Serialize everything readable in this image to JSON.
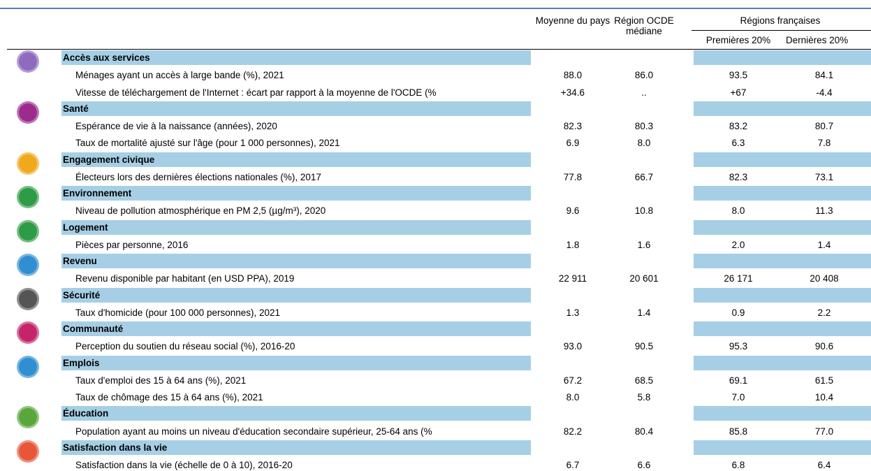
{
  "header": {
    "columns": [
      "Moyenne du pays",
      "Région OCDE médiane"
    ],
    "group": "Régions françaises",
    "subcolumns": [
      "Premières 20%",
      "Dernières 20%"
    ]
  },
  "sections": [
    {
      "title": "Accès aux services",
      "rows": [
        {
          "label": "Ménages ayant un accès à large bande (%), 2021",
          "values": [
            "88.0",
            "86.0",
            "93.5",
            "84.1"
          ]
        },
        {
          "label": "Vitesse de téléchargement de l'Internet : écart par rapport à la moyenne de l'OCDE (%",
          "values": [
            "+34.6",
            "..",
            "+67",
            "-4.4"
          ]
        }
      ]
    },
    {
      "title": "Santé",
      "rows": [
        {
          "label": "Espérance de vie à la naissance (années), 2020",
          "values": [
            "82.3",
            "80.3",
            "83.2",
            "80.7"
          ]
        },
        {
          "label": "Taux de mortalité ajusté sur l'âge (pour 1 000 personnes), 2021",
          "values": [
            "6.9",
            "8.0",
            "6.3",
            "7.8"
          ]
        }
      ]
    },
    {
      "title": "Engagement civique",
      "rows": [
        {
          "label": "Électeurs lors des dernières élections nationales (%), 2017",
          "values": [
            "77.8",
            "66.7",
            "82.3",
            "73.1"
          ]
        }
      ]
    },
    {
      "title": "Environnement",
      "rows": [
        {
          "label": "Niveau de pollution atmosphérique en PM 2,5 (µg/m³), 2020",
          "values": [
            "9.6",
            "10.8",
            "8.0",
            "11.3"
          ]
        }
      ]
    },
    {
      "title": "Logement",
      "rows": [
        {
          "label": "Pièces par personne, 2016",
          "values": [
            "1.8",
            "1.6",
            "2.0",
            "1.4"
          ]
        }
      ]
    },
    {
      "title": "Revenu",
      "rows": [
        {
          "label": "Revenu disponible par habitant (en USD PPA), 2019",
          "values": [
            "22 911",
            "20 601",
            "26 171",
            "20 408"
          ]
        }
      ]
    },
    {
      "title": "Sécurité",
      "rows": [
        {
          "label": "Taux d'homicide (pour 100 000 personnes), 2021",
          "values": [
            "1.3",
            "1.4",
            "0.9",
            "2.2"
          ]
        }
      ]
    },
    {
      "title": "Communauté",
      "rows": [
        {
          "label": "Perception du soutien du réseau social (%), 2016-20",
          "values": [
            "93.0",
            "90.5",
            "95.3",
            "90.6"
          ]
        }
      ]
    },
    {
      "title": "Emplois",
      "rows": [
        {
          "label": "Taux d'emploi des 15 à 64 ans (%), 2021",
          "values": [
            "67.2",
            "68.5",
            "69.1",
            "61.5"
          ]
        },
        {
          "label": "Taux de chômage des 15 à 64 ans (%), 2021",
          "values": [
            "8.0",
            "5.8",
            "7.0",
            "10.4"
          ]
        }
      ]
    },
    {
      "title": "Éducation",
      "rows": [
        {
          "label": "Population ayant au moins un niveau d'éducation secondaire supérieur, 25-64 ans (%",
          "values": [
            "82.2",
            "80.4",
            "85.8",
            "77.0"
          ]
        }
      ]
    },
    {
      "title": "Satisfaction dans la vie",
      "rows": [
        {
          "label": "Satisfaction dans la vie (échelle de 0 à 10), 2016-20",
          "values": [
            "6.7",
            "6.6",
            "6.8",
            "6.4"
          ]
        }
      ]
    }
  ]
}
